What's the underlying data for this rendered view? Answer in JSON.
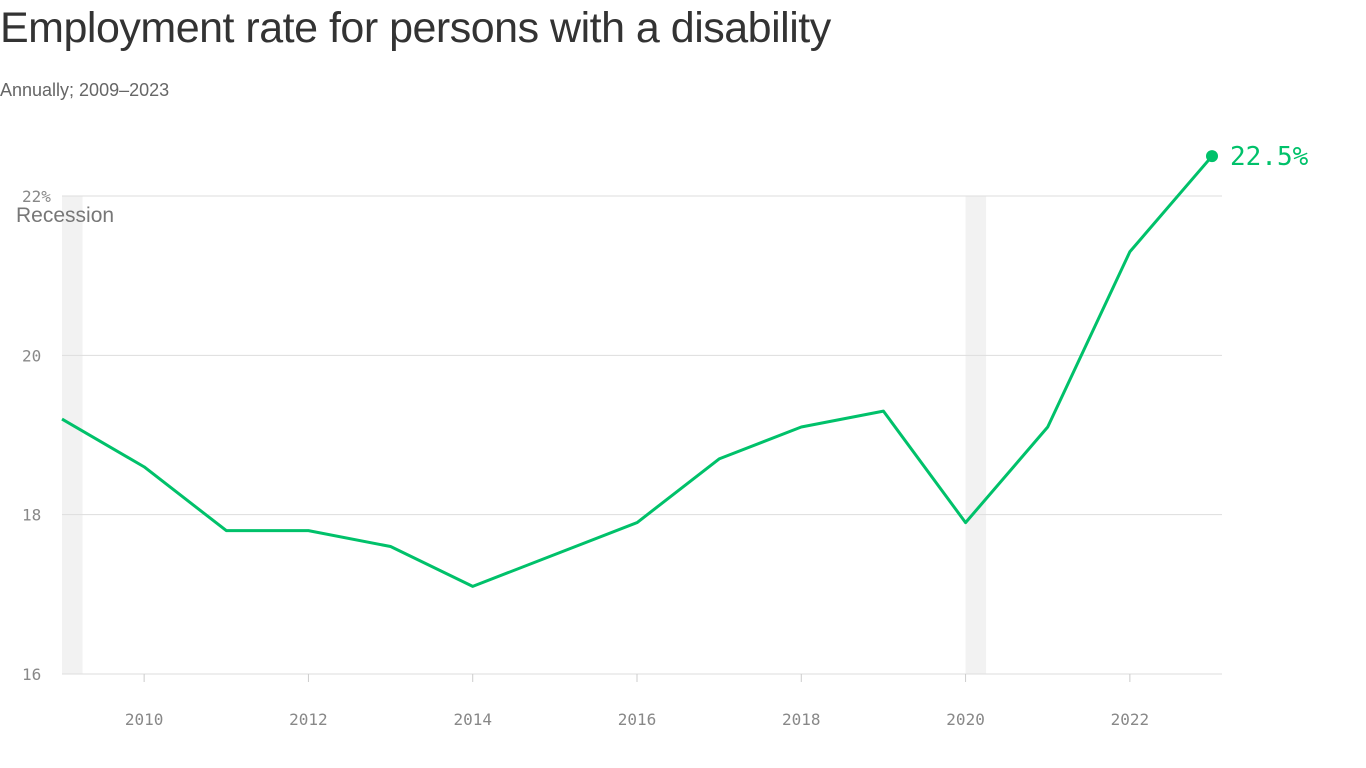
{
  "chart_data": {
    "type": "line",
    "title": "Employment rate for persons with a disability",
    "subtitle": "Annually; 2009–2023",
    "x": [
      2009,
      2010,
      2011,
      2012,
      2013,
      2014,
      2015,
      2016,
      2017,
      2018,
      2019,
      2020,
      2021,
      2022,
      2023
    ],
    "series": [
      {
        "values": [
          19.2,
          18.6,
          17.8,
          17.8,
          17.6,
          17.1,
          17.5,
          17.9,
          18.7,
          19.1,
          19.3,
          17.9,
          19.1,
          21.3,
          22.5
        ],
        "color": "#00c16a"
      }
    ],
    "xlim": [
      2009,
      2023
    ],
    "ylim": [
      16,
      22
    ],
    "x_ticks": [
      2010,
      2012,
      2014,
      2016,
      2018,
      2020,
      2022
    ],
    "y_ticks": [
      {
        "value": 16,
        "label": "16"
      },
      {
        "value": 18,
        "label": "18"
      },
      {
        "value": 20,
        "label": "20"
      },
      {
        "value": 22,
        "label": "22%"
      }
    ],
    "grid": "horizontal",
    "end_label": "22.5%",
    "recession_label": "Recession",
    "recessions": [
      [
        2009,
        2009.25
      ],
      [
        2020,
        2020.25
      ]
    ],
    "recession_color": "#f2f2f2"
  }
}
